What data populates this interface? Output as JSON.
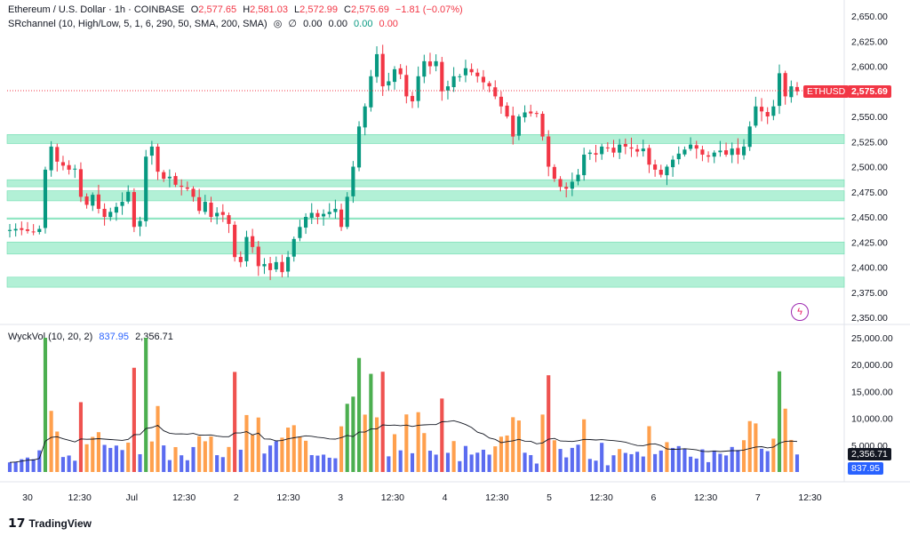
{
  "header": {
    "symbol": "Ethereum / U.S. Dollar · 1h · COINBASE",
    "o_label": "O",
    "o": "2,577.65",
    "h_label": "H",
    "h": "2,581.03",
    "l_label": "L",
    "l": "2,572.99",
    "c_label": "C",
    "c": "2,575.69",
    "change": "−1.81 (−0.07%)",
    "indicator1": "SRchannel (10, High/Low, 5, 1, 6, 290, 50, SMA, 200, SMA)",
    "ind1_v1": "0.00",
    "ind1_v2": "0.00",
    "ind1_v3": "0.00",
    "ind1_v4": "0.00",
    "indicator2": "WyckVol (10, 20, 2)",
    "ind2_v1": "837.95",
    "ind2_v2": "2,356.71"
  },
  "tags": {
    "symbol": "ETHUSD",
    "price": "2,575.69",
    "vol_ma": "2,356.71",
    "vol": "837.95"
  },
  "branding": {
    "logo_text": "TradingView"
  },
  "colors": {
    "up": "#089981",
    "down": "#f23645",
    "zone_fill": "#b2f0d6",
    "zone_edge": "#6fdcb0",
    "vol_green": "#4caf50",
    "vol_red": "#ef5350",
    "vol_orange": "#ffa04d",
    "vol_blue": "#5b6cf0"
  },
  "chart_data": {
    "type": "candlestick",
    "price_axis": {
      "ticks": [
        "2,650.00",
        "2,625.00",
        "2,600.00",
        "2,575.00",
        "2,550.00",
        "2,525.00",
        "2,500.00",
        "2,475.00",
        "2,450.00",
        "2,425.00",
        "2,400.00",
        "2,375.00",
        "2,350.00"
      ],
      "range": [
        2350,
        2650
      ]
    },
    "volume_axis": {
      "ticks": [
        "25,000.00",
        "20,000.00",
        "15,000.00",
        "10,000.00",
        "5,000.00"
      ],
      "range": [
        0,
        25000
      ]
    },
    "x_ticks": [
      "30",
      "12:30",
      "Jul",
      "12:30",
      "2",
      "12:30",
      "3",
      "12:30",
      "4",
      "12:30",
      "5",
      "12:30",
      "6",
      "12:30",
      "7",
      "12:30"
    ],
    "last_price": 2575.69,
    "zones": [
      [
        2523,
        2532
      ],
      [
        2480,
        2487
      ],
      [
        2466,
        2476
      ],
      [
        2448,
        2449
      ],
      [
        2413,
        2425
      ],
      [
        2380,
        2390
      ]
    ],
    "close": [
      2437,
      2438,
      2437,
      2436,
      2435,
      2438,
      2497,
      2520,
      2505,
      2501,
      2497,
      2498,
      2470,
      2462,
      2472,
      2458,
      2450,
      2455,
      2460,
      2465,
      2475,
      2440,
      2446,
      2510,
      2520,
      2495,
      2488,
      2490,
      2482,
      2480,
      2478,
      2470,
      2456,
      2465,
      2450,
      2454,
      2452,
      2443,
      2410,
      2405,
      2430,
      2420,
      2401,
      2403,
      2397,
      2405,
      2395,
      2410,
      2428,
      2440,
      2450,
      2454,
      2450,
      2453,
      2455,
      2458,
      2440,
      2470,
      2500,
      2540,
      2560,
      2590,
      2612,
      2580,
      2585,
      2597,
      2592,
      2570,
      2565,
      2590,
      2605,
      2600,
      2605,
      2575,
      2580,
      2590,
      2590,
      2598,
      2594,
      2590,
      2584,
      2580,
      2570,
      2560,
      2550,
      2530,
      2550,
      2554,
      2553,
      2553,
      2530,
      2500,
      2488,
      2480,
      2478,
      2485,
      2492,
      2512,
      2514,
      2512,
      2520,
      2519,
      2514,
      2522,
      2520,
      2518,
      2515,
      2518,
      2502,
      2497,
      2492,
      2500,
      2507,
      2513,
      2517,
      2522,
      2518,
      2512,
      2510,
      2514,
      2516,
      2512,
      2518,
      2512,
      2520,
      2540,
      2560,
      2555,
      2550,
      2560,
      2593,
      2570,
      2580,
      2575
    ]
  }
}
